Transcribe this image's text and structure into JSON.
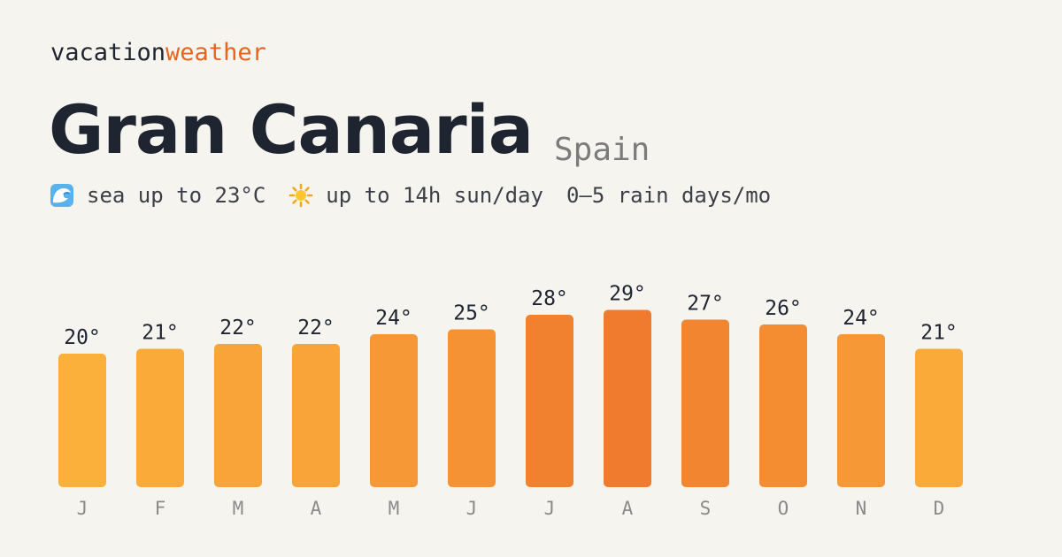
{
  "brand": {
    "part1": "vacation",
    "part2": "weather"
  },
  "title": {
    "place": "Gran Canaria",
    "country": "Spain"
  },
  "facts": [
    {
      "icon": "wave-icon",
      "text": "sea up to 23°C"
    },
    {
      "icon": "sun-icon",
      "text": "up to 14h sun/day"
    },
    {
      "icon": "",
      "text": "0–5 rain days/mo"
    }
  ],
  "colors": {
    "background": "#f5f4ef",
    "brand_accent": "#e9641f",
    "bar_cool": "#fbb03b",
    "bar_hot": "#f07a2d"
  },
  "chart_data": {
    "type": "bar",
    "title": "",
    "xlabel": "",
    "ylabel": "",
    "unit": "°",
    "categories": [
      "J",
      "F",
      "M",
      "A",
      "M",
      "J",
      "J",
      "A",
      "S",
      "O",
      "N",
      "D"
    ],
    "values": [
      20,
      21,
      22,
      22,
      24,
      25,
      28,
      29,
      27,
      26,
      24,
      21
    ],
    "value_labels": [
      "20°",
      "21°",
      "22°",
      "22°",
      "24°",
      "25°",
      "28°",
      "29°",
      "27°",
      "26°",
      "24°",
      "21°"
    ],
    "grid": false,
    "legend": "none"
  }
}
